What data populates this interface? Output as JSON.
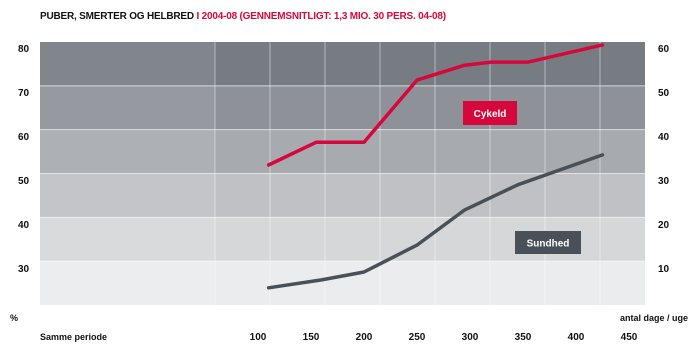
{
  "chart_data": {
    "type": "line",
    "title": "PUBER, SMERTER OG HELBRED",
    "subtitle": "I 2004-08 (GENNEMSNITLIGT: 1,3 MIO. 30 PERS. 04-08)",
    "xlabel": "Samme periode",
    "xlabel_right": "antal dage / uge",
    "ylabel_left": "%",
    "xlim": [
      100,
      450
    ],
    "x_ticks": [
      100,
      150,
      200,
      250,
      300,
      350,
      400,
      450
    ],
    "ylim_left": [
      30,
      80
    ],
    "y_ticks_left": [
      80,
      70,
      60,
      50,
      40,
      30
    ],
    "ylim_right": [
      10,
      60
    ],
    "y_ticks_right": [
      60,
      50,
      40,
      30,
      20,
      10
    ],
    "grid": true,
    "band_colors": [
      "#777c83",
      "#8e9298",
      "#a7aaae",
      "#bfc1c4",
      "#d6d7d9",
      "#ebeced"
    ],
    "series": [
      {
        "name": "Cykeld",
        "axis": "left",
        "color": "#d6083b",
        "x": [
          110,
          155,
          200,
          250,
          295,
          320,
          355,
          425
        ],
        "y": [
          53.4,
          58.6,
          58.6,
          72.7,
          76.1,
          76.8,
          76.8,
          80.7
        ]
      },
      {
        "name": "Sundhed",
        "axis": "right",
        "color": "#4a5058",
        "x": [
          110,
          160,
          200,
          250,
          295,
          345,
          425
        ],
        "y": [
          5.5,
          7.3,
          9.1,
          15.2,
          23.2,
          28.9,
          35.7
        ]
      }
    ]
  }
}
